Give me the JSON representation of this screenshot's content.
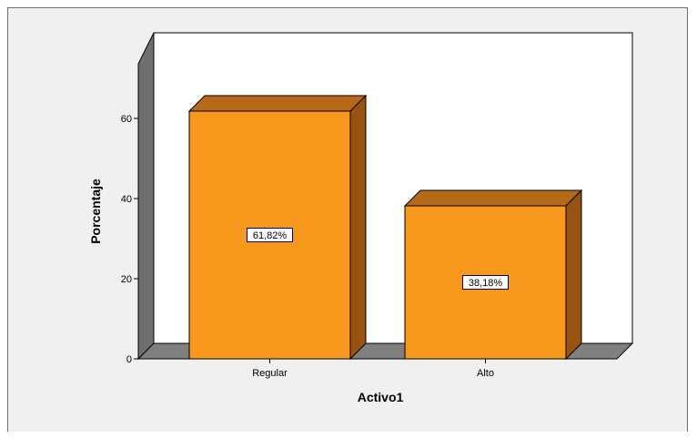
{
  "chart_data": {
    "type": "bar",
    "title": "",
    "xlabel": "Activo1",
    "ylabel": "Porcentaje",
    "categories": [
      "Regular",
      "Alto"
    ],
    "values": [
      61.82,
      38.18
    ],
    "data_labels": [
      "61,82%",
      "38,18%"
    ],
    "yticks": [
      0,
      20,
      40,
      60
    ],
    "ytick_labels": [
      "0",
      "20",
      "40",
      "60"
    ],
    "ylim": [
      0,
      75
    ],
    "grid": false,
    "legend": "none",
    "three_d": true,
    "colors": {
      "bar_front": "#f7981d",
      "bar_top": "#b66a17",
      "bar_side": "#975411",
      "floor": "#808080",
      "wall_side": "#6f6f6f",
      "plot_back": "#ffffff",
      "background": "#f0f0f0"
    }
  }
}
